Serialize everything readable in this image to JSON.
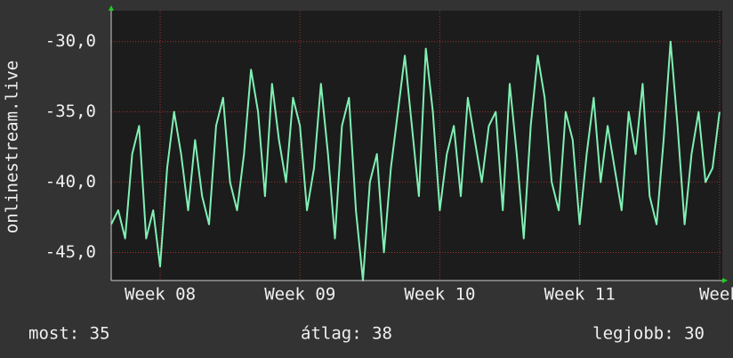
{
  "chart_data": {
    "type": "line",
    "y_label": "onlinestream.live",
    "x": [
      7.65,
      7.7,
      7.75,
      7.8,
      7.85,
      7.9,
      7.95,
      8.0,
      8.05,
      8.1,
      8.15,
      8.2,
      8.25,
      8.3,
      8.35,
      8.4,
      8.45,
      8.5,
      8.55,
      8.6,
      8.65,
      8.7,
      8.75,
      8.8,
      8.85,
      8.9,
      8.95,
      9.0,
      9.05,
      9.1,
      9.15,
      9.2,
      9.25,
      9.3,
      9.35,
      9.4,
      9.45,
      9.5,
      9.55,
      9.6,
      9.65,
      9.7,
      9.75,
      9.8,
      9.85,
      9.9,
      9.95,
      10.0,
      10.05,
      10.1,
      10.15,
      10.2,
      10.25,
      10.3,
      10.35,
      10.4,
      10.45,
      10.5,
      10.55,
      10.6,
      10.65,
      10.7,
      10.75,
      10.8,
      10.85,
      10.9,
      10.95,
      11.0,
      11.05,
      11.1,
      11.15,
      11.2,
      11.25,
      11.3,
      11.35,
      11.4,
      11.45,
      11.5,
      11.55,
      11.6,
      11.65,
      11.7,
      11.75,
      11.8,
      11.85,
      11.9,
      11.95,
      12.0
    ],
    "series": [
      {
        "name": "onlinestream.live",
        "color": "#80f0b4",
        "values": [
          -43,
          -42,
          -44,
          -38,
          -36,
          -44,
          -42,
          -46,
          -39,
          -35,
          -38,
          -42,
          -37,
          -41,
          -43,
          -36,
          -34,
          -40,
          -42,
          -38,
          -32,
          -35,
          -41,
          -33,
          -37,
          -40,
          -34,
          -36,
          -42,
          -39,
          -33,
          -38,
          -44,
          -36,
          -34,
          -42,
          -47,
          -40,
          -38,
          -45,
          -39,
          -35,
          -31,
          -36,
          -41,
          -30.5,
          -35,
          -42,
          -38,
          -36,
          -41,
          -34,
          -37,
          -40,
          -36,
          -35,
          -42,
          -33,
          -38,
          -44,
          -36,
          -31,
          -34,
          -40,
          -42,
          -35,
          -37,
          -43,
          -38,
          -34,
          -40,
          -36,
          -39,
          -42,
          -35,
          -38,
          -33,
          -41,
          -43,
          -37,
          -30,
          -36,
          -43,
          -38,
          -35,
          -40,
          -39,
          -35
        ]
      }
    ],
    "xlim": [
      7.65,
      12.02
    ],
    "xticks": [
      {
        "value": 8,
        "label": "Week 08"
      },
      {
        "value": 9,
        "label": "Week 09"
      },
      {
        "value": 10,
        "label": "Week 10"
      },
      {
        "value": 11,
        "label": "Week 11"
      },
      {
        "value": 12,
        "label": "Week"
      }
    ],
    "ylim": [
      -47,
      -27.8
    ],
    "yticks": [
      {
        "value": -45,
        "label": "-45,0"
      },
      {
        "value": -40,
        "label": "-40,0"
      },
      {
        "value": -35,
        "label": "-35,0"
      },
      {
        "value": -30,
        "label": "-30,0"
      }
    ],
    "grid": true,
    "footer": {
      "now": "most: 35",
      "avg": "átlag: 38",
      "best": "legjobb: 30"
    }
  }
}
